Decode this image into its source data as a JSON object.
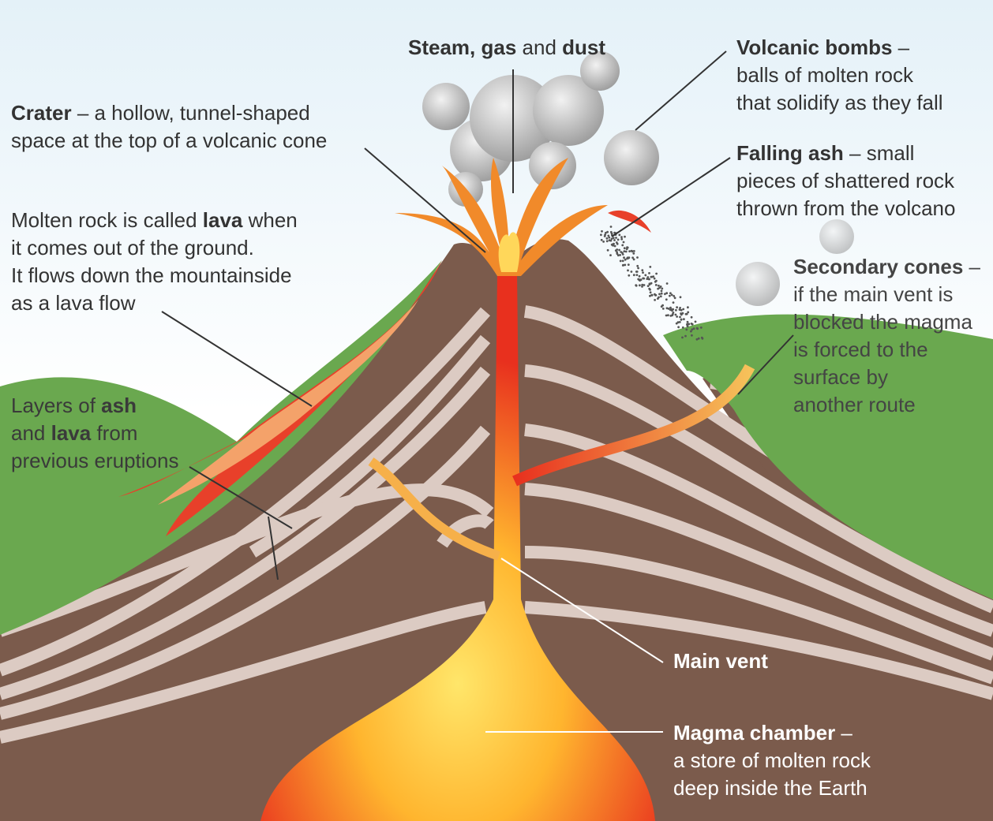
{
  "labels": [
    {
      "lines": [
        [
          {
            "text": "Steam, gas",
            "bold": true
          },
          {
            "text": " and "
          },
          {
            "text": "dust",
            "bold": true
          }
        ]
      ]
    },
    {
      "lines": [
        [
          {
            "text": "Volcanic bombs",
            "bold": true
          },
          {
            "text": " –"
          }
        ],
        [
          {
            "text": "balls of molten rock"
          }
        ],
        [
          {
            "text": "that solidify as they fall"
          }
        ]
      ]
    },
    {
      "lines": [
        [
          {
            "text": "Crater",
            "bold": true
          },
          {
            "text": " – a hollow, tunnel-shaped"
          }
        ],
        [
          {
            "text": "space at the top of a volcanic cone"
          }
        ]
      ]
    },
    {
      "lines": [
        [
          {
            "text": "Falling ash",
            "bold": true
          },
          {
            "text": " – small"
          }
        ],
        [
          {
            "text": "pieces of shattered rock"
          }
        ],
        [
          {
            "text": "thrown from the volcano"
          }
        ]
      ]
    },
    {
      "lines": [
        [
          {
            "text": "Molten rock is called "
          },
          {
            "text": "lava",
            "bold": true
          },
          {
            "text": " when"
          }
        ],
        [
          {
            "text": "it comes out of the ground."
          }
        ],
        [
          {
            "text": "It flows down the mountainside"
          }
        ],
        [
          {
            "text": "as a lava flow"
          }
        ]
      ]
    },
    {
      "lines": [
        [
          {
            "text": "Secondary cones",
            "bold": true
          },
          {
            "text": " –"
          }
        ],
        [
          {
            "text": "if the main vent is"
          }
        ],
        [
          {
            "text": "blocked the magma"
          }
        ],
        [
          {
            "text": "is forced to the"
          }
        ],
        [
          {
            "text": "surface by"
          }
        ],
        [
          {
            "text": "another route"
          }
        ]
      ]
    },
    {
      "lines": [
        [
          {
            "text": "Layers of "
          },
          {
            "text": "ash",
            "bold": true
          }
        ],
        [
          {
            "text": "and "
          },
          {
            "text": "lava",
            "bold": true
          },
          {
            "text": " from"
          }
        ],
        [
          {
            "text": "previous eruptions"
          }
        ]
      ]
    },
    {
      "lines": [
        [
          {
            "text": "Main vent",
            "bold": true
          }
        ]
      ]
    },
    {
      "lines": [
        [
          {
            "text": "Magma chamber",
            "bold": true
          },
          {
            "text": " –"
          }
        ],
        [
          {
            "text": "a store of molten rock"
          }
        ],
        [
          {
            "text": "deep inside the Earth"
          }
        ]
      ]
    }
  ]
}
